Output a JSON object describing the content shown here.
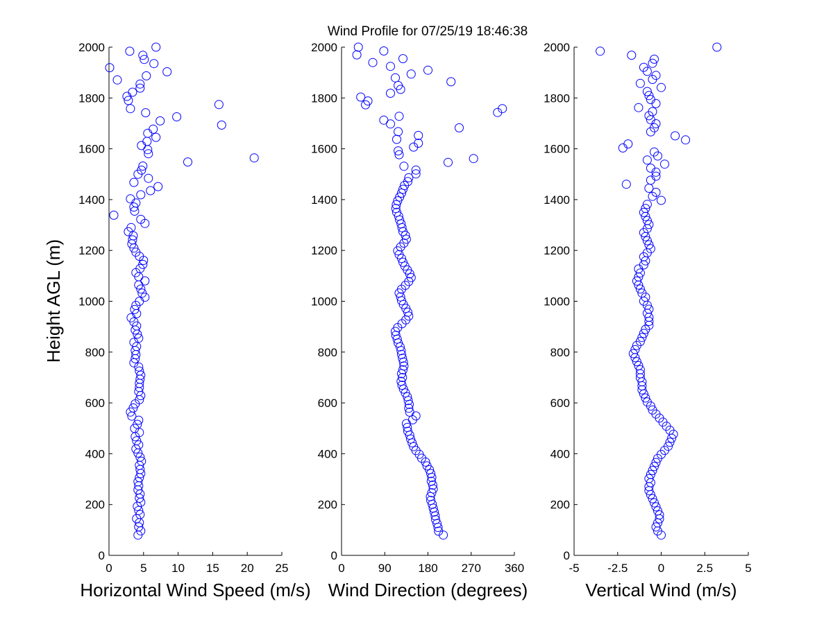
{
  "title": "Wind Profile for  07/25/19 18:46:38",
  "ylabel": "Height AGL (m)",
  "marker_color": "#0000ff",
  "chart_data": [
    {
      "type": "scatter",
      "xlabel": "Horizontal Wind Speed (m/s)",
      "ylabel": "Height AGL (m)",
      "xlim": [
        0,
        25
      ],
      "ylim": [
        0,
        2000
      ],
      "xticks": [
        "0",
        "5",
        "10",
        "15",
        "20",
        "25"
      ],
      "yticks": [
        "0",
        "200",
        "400",
        "600",
        "800",
        "1000",
        "1200",
        "1400",
        "1600",
        "1800",
        "2000"
      ],
      "grid": false,
      "series": [
        {
          "x": [
            4.2,
            4.6,
            4.3,
            4.4,
            4.0,
            4.5,
            4.3,
            4.1,
            4.6,
            4.4,
            4.5,
            4.2,
            4.3,
            4.2,
            4.4,
            4.6,
            4.5,
            4.4,
            4.7,
            4.5,
            4.2,
            3.9,
            4.3,
            4.0,
            3.8,
            4.4,
            3.7,
            4.1,
            4.3,
            3.3,
            3.1,
            3.5,
            3.8,
            4.4,
            4.6,
            4.3,
            4.4,
            4.4,
            4.5,
            4.6,
            4.4,
            4.3,
            3.6,
            3.8,
            3.9,
            3.8,
            4.0,
            3.6,
            4.3,
            4.1,
            3.8,
            4.0,
            3.6,
            3.2,
            4.0,
            3.7,
            3.9,
            4.4,
            5.2,
            4.8,
            4.6,
            4.3,
            5.2,
            4.3,
            3.9,
            4.5,
            4.9,
            5.0,
            4.4,
            3.9,
            3.6,
            3.3,
            3.4,
            3.5,
            2.8,
            3.2,
            5.2,
            4.6,
            0.7,
            3.7,
            3.6,
            3.9,
            3.1,
            4.6,
            6.0,
            7.1,
            3.6,
            5.7,
            4.2,
            4.7,
            4.9,
            11.4,
            21.0,
            5.7,
            5.6,
            4.7,
            5.5,
            6.8,
            5.6,
            6.4,
            16.3,
            7.4,
            9.8,
            5.3,
            3.1,
            15.9,
            2.8,
            2.6,
            3.4,
            4.5,
            4.5,
            1.2,
            5.4,
            8.4,
            0.1,
            6.5,
            5.1,
            4.9,
            3.0,
            6.8
          ]
        }
      ]
    },
    {
      "type": "scatter",
      "xlabel": "Wind Direction (degrees)",
      "ylabel": "",
      "xlim": [
        0,
        360
      ],
      "ylim": [
        0,
        2000
      ],
      "xticks": [
        "0",
        "90",
        "180",
        "270",
        "360"
      ],
      "yticks": [
        "0",
        "200",
        "400",
        "600",
        "800",
        "1000",
        "1200",
        "1400",
        "1600",
        "1800",
        "2000"
      ],
      "grid": false,
      "series": [
        {
          "x": [
            212,
            202,
            201,
            199,
            196,
            195,
            193,
            191,
            189,
            186,
            185,
            188,
            191,
            190,
            187,
            188,
            186,
            183,
            178,
            175,
            167,
            162,
            155,
            150,
            147,
            144,
            142,
            138,
            137,
            135,
            148,
            155,
            142,
            140,
            141,
            139,
            137,
            133,
            129,
            126,
            124,
            127,
            125,
            128,
            130,
            129,
            127,
            125,
            124,
            122,
            118,
            116,
            113,
            112,
            117,
            126,
            134,
            140,
            138,
            134,
            129,
            125,
            123,
            120,
            125,
            133,
            140,
            145,
            142,
            137,
            132,
            128,
            125,
            120,
            117,
            123,
            130,
            135,
            133,
            128,
            126,
            124,
            121,
            119,
            115,
            113,
            114,
            117,
            121,
            125,
            128,
            131,
            138,
            140,
            155,
            155,
            130,
            222,
            275,
            120,
            118,
            150,
            160,
            115,
            160,
            118,
            245,
            102,
            88,
            120,
            325,
            335,
            50,
            55,
            40,
            102,
            123,
            118,
            228,
            112,
            145,
            180,
            102,
            65,
            128,
            32,
            88,
            35
          ]
        }
      ]
    },
    {
      "type": "scatter",
      "xlabel": "Vertical Wind (m/s)",
      "ylabel": "",
      "xlim": [
        -5,
        5
      ],
      "ylim": [
        0,
        2000
      ],
      "xticks": [
        "-5",
        "-2.5",
        "0",
        "2.5",
        "5"
      ],
      "yticks": [
        "0",
        "200",
        "400",
        "600",
        "800",
        "1000",
        "1200",
        "1400",
        "1600",
        "1800",
        "2000"
      ],
      "grid": false,
      "series": [
        {
          "x": [
            0.0,
            -0.2,
            -0.3,
            -0.2,
            -0.1,
            -0.1,
            -0.2,
            -0.3,
            -0.4,
            -0.5,
            -0.6,
            -0.7,
            -0.7,
            -0.6,
            -0.7,
            -0.6,
            -0.5,
            -0.4,
            -0.3,
            -0.2,
            0.0,
            0.2,
            0.4,
            0.5,
            0.6,
            0.7,
            0.5,
            0.3,
            0.1,
            -0.1,
            -0.3,
            -0.5,
            -0.6,
            -0.8,
            -0.9,
            -1.0,
            -1.1,
            -1.1,
            -1.1,
            -1.2,
            -1.2,
            -1.2,
            -1.3,
            -1.4,
            -1.5,
            -1.6,
            -1.5,
            -1.4,
            -1.2,
            -1.1,
            -1.0,
            -0.9,
            -0.7,
            -0.7,
            -0.7,
            -0.8,
            -0.7,
            -0.8,
            -1.0,
            -0.9,
            -1.1,
            -1.2,
            -1.3,
            -1.4,
            -1.3,
            -1.2,
            -1.3,
            -1.0,
            -0.9,
            -1.0,
            -0.8,
            -0.6,
            -0.7,
            -0.8,
            -0.9,
            -1.0,
            -0.8,
            -0.7,
            -0.8,
            -0.9,
            -1.0,
            -0.9,
            -0.8,
            0.0,
            -0.5,
            -0.3,
            -0.7,
            -2.0,
            -0.6,
            -0.3,
            -0.3,
            -0.6,
            0.2,
            -0.8,
            -0.2,
            -0.4,
            -2.2,
            -1.9,
            1.4,
            0.8,
            -0.6,
            -0.4,
            -0.3,
            -0.6,
            -0.7,
            -0.5,
            -1.3,
            -0.3,
            -0.6,
            -0.7,
            -0.8,
            0.0,
            -1.2,
            -0.5,
            -0.3,
            -0.8,
            -1.0,
            -0.5,
            -0.4,
            -1.7,
            -3.5,
            3.2
          ]
        }
      ]
    }
  ]
}
